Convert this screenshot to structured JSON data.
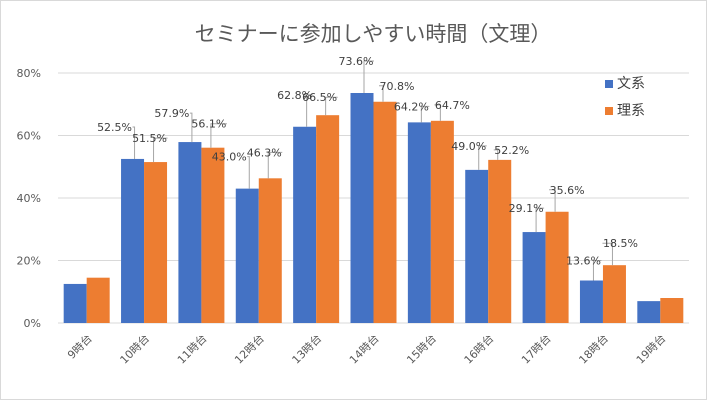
{
  "chart_data": {
    "type": "bar",
    "title": "セミナーに参加しやすい時間（文理）",
    "categories": [
      "9時台",
      "10時台",
      "11時台",
      "12時台",
      "13時台",
      "14時台",
      "15時台",
      "16時台",
      "17時台",
      "18時台",
      "19時台"
    ],
    "series": [
      {
        "name": "文系",
        "color": "#4472C4",
        "values": [
          12.5,
          52.5,
          57.9,
          43.0,
          62.8,
          73.6,
          64.2,
          49.0,
          29.1,
          13.6,
          7.0
        ],
        "labels": [
          "",
          "52.5%",
          "57.9%",
          "43.0%",
          "62.8%",
          "73.6%",
          "64.2%",
          "49.0%",
          "29.1%",
          "13.6%",
          ""
        ]
      },
      {
        "name": "理系",
        "color": "#ED7D31",
        "values": [
          14.5,
          51.5,
          56.1,
          46.3,
          66.5,
          70.8,
          64.7,
          52.2,
          35.6,
          18.5,
          8.0
        ],
        "labels": [
          "",
          "51.5%",
          "56.1%",
          "46.3%",
          "66.5%",
          "70.8%",
          "64.7%",
          "52.2%",
          "35.6%",
          "18.5%",
          ""
        ]
      }
    ],
    "yticks": [
      "0%",
      "20%",
      "40%",
      "60%",
      "80%"
    ],
    "ylim": [
      0,
      80
    ],
    "grid": true,
    "legend": "top-right",
    "xlabel": "",
    "ylabel": ""
  }
}
